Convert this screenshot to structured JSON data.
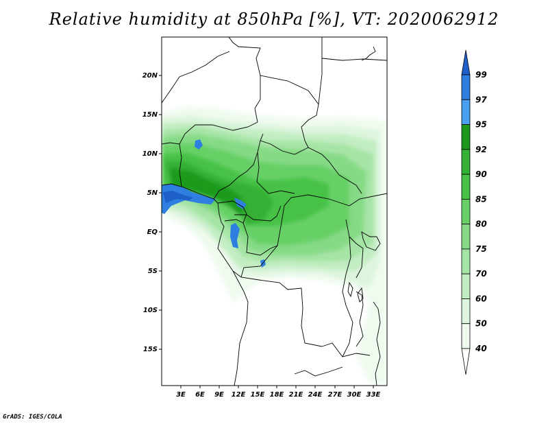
{
  "title": "Relative humidity at 850hPa [%], VT: 2020062912",
  "credit": "GrADS: IGES/COLA",
  "map": {
    "lat_ticks": [
      "20N",
      "15N",
      "10N",
      "5N",
      "EQ",
      "5S",
      "10S",
      "15S"
    ],
    "lon_ticks": [
      "3E",
      "6E",
      "9E",
      "12E",
      "15E",
      "18E",
      "21E",
      "24E",
      "27E",
      "30E",
      "33E"
    ]
  },
  "colorbar": {
    "levels": [
      "99",
      "97",
      "95",
      "92",
      "90",
      "85",
      "80",
      "75",
      "70",
      "60",
      "50",
      "40"
    ],
    "colors": [
      "#1e5fc8",
      "#2f7fe0",
      "#4aa0f0",
      "#1d9a1d",
      "#34b034",
      "#46c246",
      "#66d066",
      "#86da86",
      "#a6e4a6",
      "#c3edc3",
      "#ddf5dd",
      "#f0fbf0",
      "#ffffff"
    ]
  }
}
